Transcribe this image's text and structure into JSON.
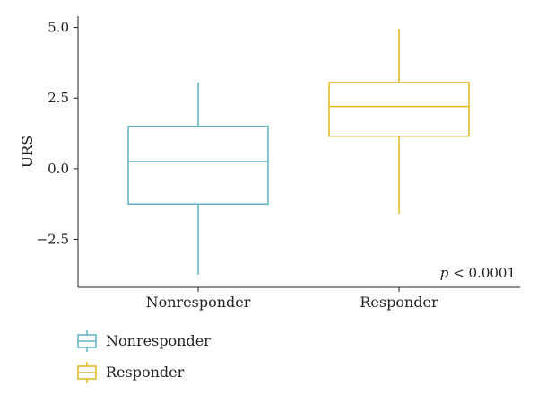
{
  "chart_data": {
    "type": "box",
    "ylabel": "URS",
    "ylim": [
      -4.2,
      5.4
    ],
    "yticks": [
      -2.5,
      0.0,
      2.5,
      5.0
    ],
    "ytick_labels": [
      "−2.5",
      "0.0",
      "2.5",
      "5.0"
    ],
    "categories": [
      "Nonresponder",
      "Responder"
    ],
    "boxes": [
      {
        "category": "Nonresponder",
        "min": -3.75,
        "q1": -1.25,
        "median": 0.25,
        "q3": 1.5,
        "max": 3.05,
        "color": "#5eb0c0"
      },
      {
        "category": "Responder",
        "min": -1.6,
        "q1": 1.15,
        "median": 2.2,
        "q3": 3.05,
        "max": 4.95,
        "color": "#e3b81f"
      }
    ],
    "annotation": {
      "italic": "p",
      "rest": " < 0.0001"
    },
    "legend": [
      {
        "label": "Nonresponder",
        "color": "#5eb0c0"
      },
      {
        "label": "Responder",
        "color": "#e3b81f"
      }
    ],
    "legend_position": "bottom-left",
    "grid": false
  }
}
